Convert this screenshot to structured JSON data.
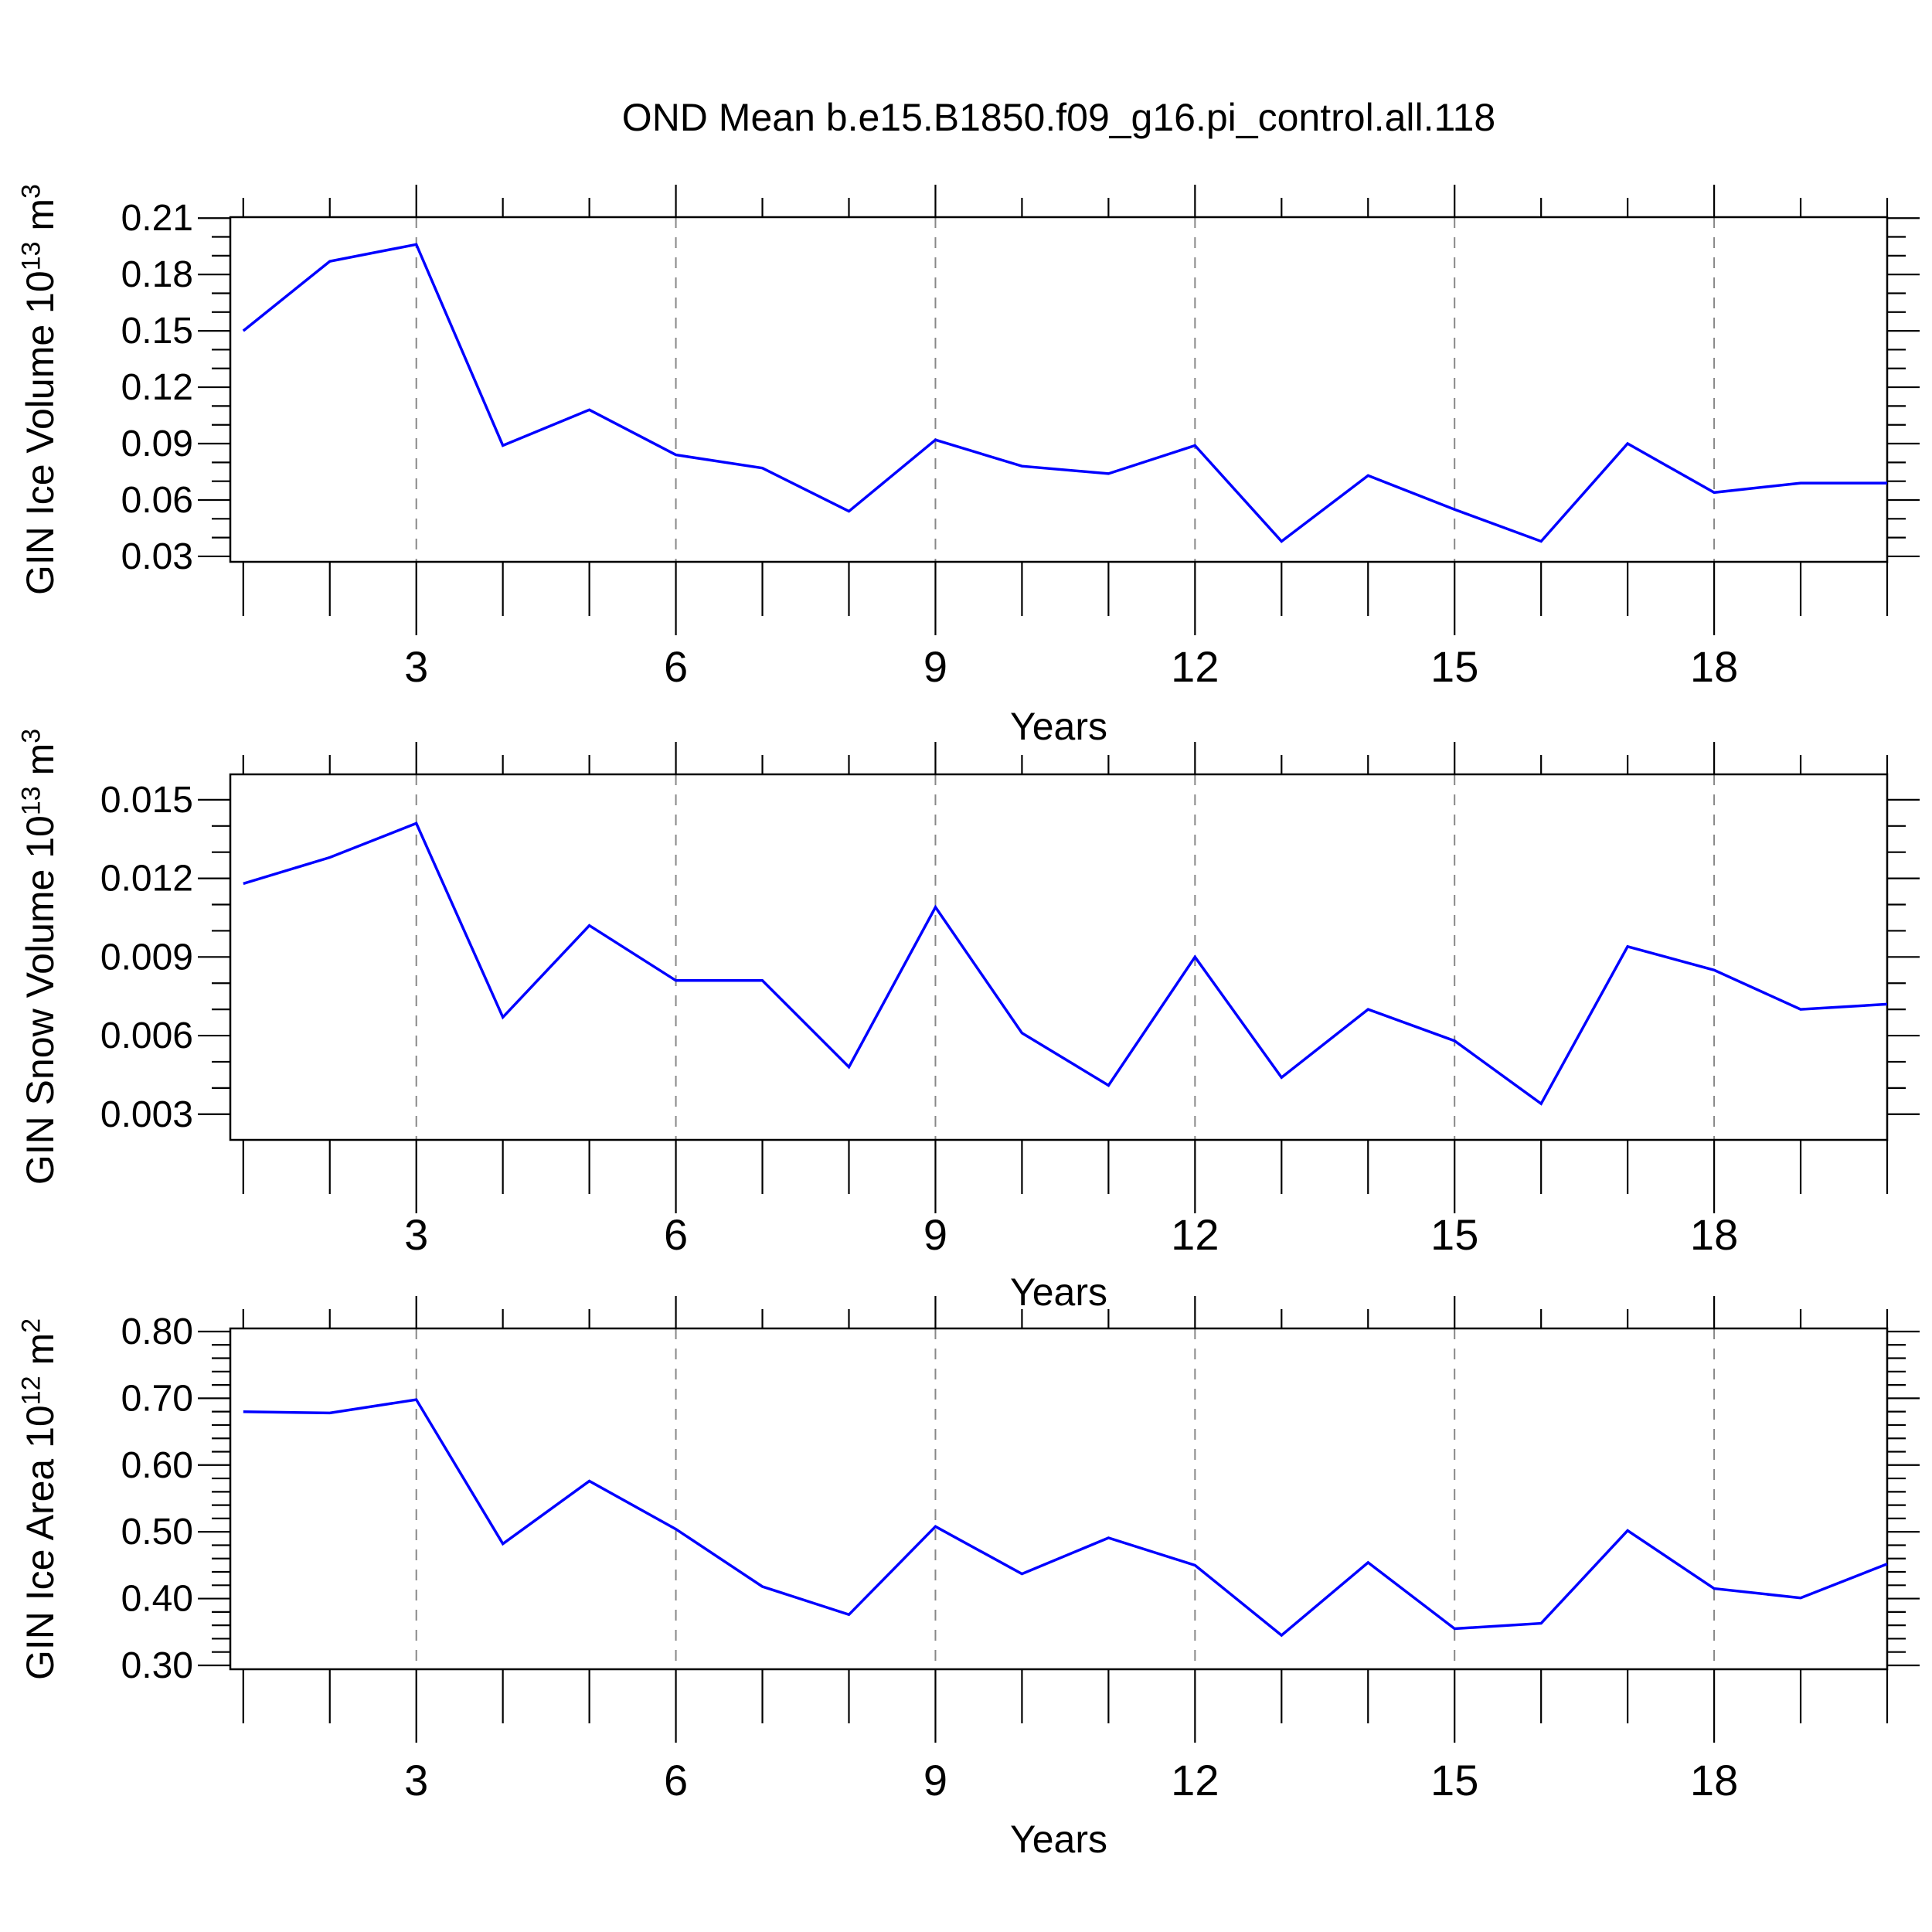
{
  "title": "OND Mean b.e15.B1850.f09_g16.pi_control.all.118",
  "colors": {
    "line": "#0000ff",
    "gridline": "#888888",
    "frame": "#000000",
    "tick": "#000000",
    "text": "#000000",
    "background": "#ffffff"
  },
  "x_axis": {
    "label": "Years",
    "tick_values": [
      3,
      6,
      9,
      12,
      15,
      18
    ],
    "minor_tick_step": 1,
    "range": [
      0.85,
      20
    ]
  },
  "chart_data": [
    {
      "type": "line",
      "id": "gin-ice-volume",
      "ylabel": "GIN Ice Volume 10^13 m^3",
      "ylabel_base": "GIN Ice Volume 10",
      "ylabel_exponent": "13",
      "ylabel_unit": " m",
      "ylabel_unit_exponent": "3",
      "xlabel": "Years",
      "ytick_labels": [
        "0.21",
        "0.18",
        "0.15",
        "0.12",
        "0.09",
        "0.06",
        "0.03"
      ],
      "ytick_values": [
        0.21,
        0.18,
        0.15,
        0.12,
        0.09,
        0.06,
        0.03
      ],
      "y_minor_step": 0.01,
      "ylim": [
        0.0271,
        0.2105
      ],
      "grid_x": [
        3,
        6,
        9,
        12,
        15,
        18
      ],
      "x": [
        1,
        2,
        3,
        4,
        5,
        6,
        7,
        8,
        9,
        10,
        11,
        12,
        13,
        14,
        15,
        16,
        17,
        18,
        19,
        20
      ],
      "values": [
        0.15,
        0.187,
        0.196,
        0.089,
        0.108,
        0.084,
        0.077,
        0.054,
        0.092,
        0.078,
        0.074,
        0.089,
        0.038,
        0.073,
        0.055,
        0.038,
        0.09,
        0.064,
        0.069,
        0.069
      ]
    },
    {
      "type": "line",
      "id": "gin-snow-volume",
      "ylabel": "GIN Snow Volume 10^13 m^3",
      "ylabel_base": "GIN Snow Volume 10",
      "ylabel_exponent": "13",
      "ylabel_unit": " m",
      "ylabel_unit_exponent": "3",
      "xlabel": "Years",
      "ytick_labels": [
        "0.015",
        "0.012",
        "0.009",
        "0.006",
        "0.003"
      ],
      "ytick_values": [
        0.015,
        0.012,
        0.009,
        0.006,
        0.003
      ],
      "y_minor_step": 0.001,
      "ylim": [
        0.00202,
        0.01597
      ],
      "grid_x": [
        3,
        6,
        9,
        12,
        15,
        18
      ],
      "x": [
        1,
        2,
        3,
        4,
        5,
        6,
        7,
        8,
        9,
        10,
        11,
        12,
        13,
        14,
        15,
        16,
        17,
        18,
        19,
        20
      ],
      "values": [
        0.0118,
        0.0128,
        0.0141,
        0.0067,
        0.0102,
        0.0081,
        0.0081,
        0.0048,
        0.0109,
        0.0061,
        0.0041,
        0.009,
        0.0044,
        0.007,
        0.0058,
        0.0034,
        0.0094,
        0.0085,
        0.007,
        0.0072
      ]
    },
    {
      "type": "line",
      "id": "gin-ice-area",
      "ylabel": "GIN Ice Area 10^12 m^2",
      "ylabel_base": "GIN Ice Area 10",
      "ylabel_exponent": "12",
      "ylabel_unit": " m",
      "ylabel_unit_exponent": "2",
      "xlabel": "Years",
      "ytick_labels": [
        "0.80",
        "0.70",
        "0.60",
        "0.50",
        "0.40",
        "0.30"
      ],
      "ytick_values": [
        0.8,
        0.7,
        0.6,
        0.5,
        0.4,
        0.3
      ],
      "y_minor_step": 0.02,
      "ylim": [
        0.2942,
        0.8046
      ],
      "grid_x": [
        3,
        6,
        9,
        12,
        15,
        18
      ],
      "x": [
        1,
        2,
        3,
        4,
        5,
        6,
        7,
        8,
        9,
        10,
        11,
        12,
        13,
        14,
        15,
        16,
        17,
        18,
        19,
        20
      ],
      "values": [
        0.68,
        0.678,
        0.698,
        0.482,
        0.576,
        0.504,
        0.418,
        0.376,
        0.508,
        0.437,
        0.491,
        0.45,
        0.345,
        0.454,
        0.355,
        0.363,
        0.502,
        0.415,
        0.401,
        0.452
      ]
    }
  ]
}
